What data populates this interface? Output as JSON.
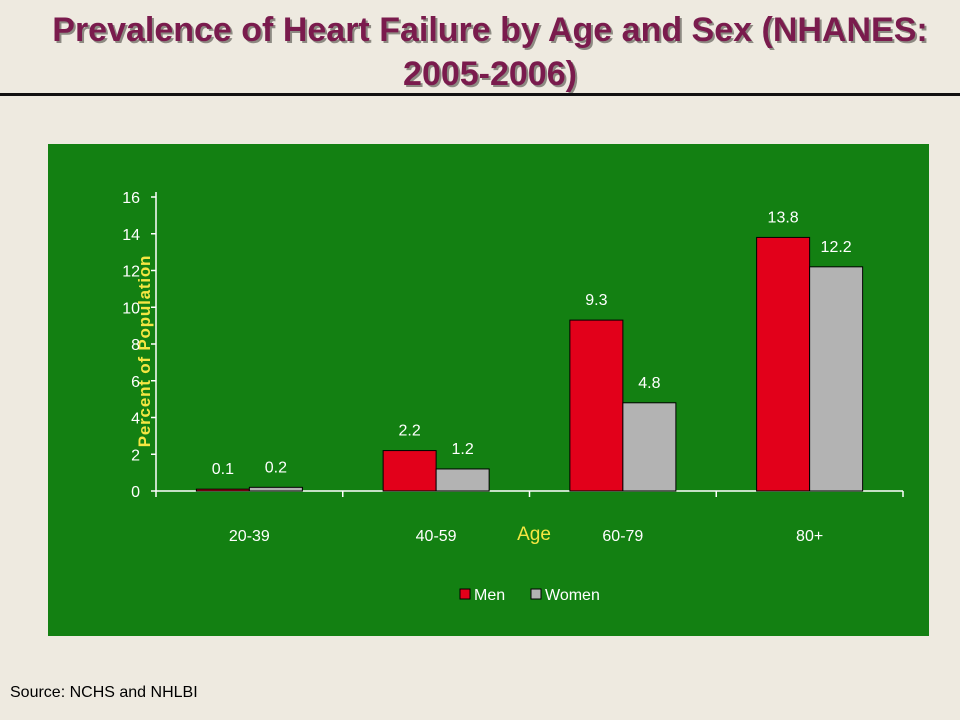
{
  "title": "Prevalence of Heart Failure by Age and Sex (NHANES: 2005-2006)",
  "source": "Source: NCHS and NHLBI",
  "colors": {
    "background": "#eeeae0",
    "title": "#7a1b4d",
    "panel": "#138012",
    "men": "#e2001a",
    "women": "#b3b3b3",
    "axis_label": "#f5e642"
  },
  "chart_data": {
    "type": "bar",
    "title": "",
    "xlabel": "Age",
    "ylabel": "Percent of Population",
    "categories": [
      "20-39",
      "40-59",
      "60-79",
      "80+"
    ],
    "series": [
      {
        "name": "Men",
        "values": [
          0.1,
          2.2,
          9.3,
          13.8
        ],
        "data_labels": [
          "0.1",
          "2.2",
          "9.3",
          "13.8"
        ]
      },
      {
        "name": "Women",
        "values": [
          0.2,
          1.2,
          4.8,
          12.2
        ],
        "data_labels": [
          "0.2",
          "1.2",
          "4.8",
          "12.2"
        ]
      }
    ],
    "ylim": [
      0,
      16
    ],
    "yticks": [
      0,
      2,
      4,
      6,
      8,
      10,
      12,
      14,
      16
    ],
    "grid": false,
    "legend": "bottom-center"
  }
}
